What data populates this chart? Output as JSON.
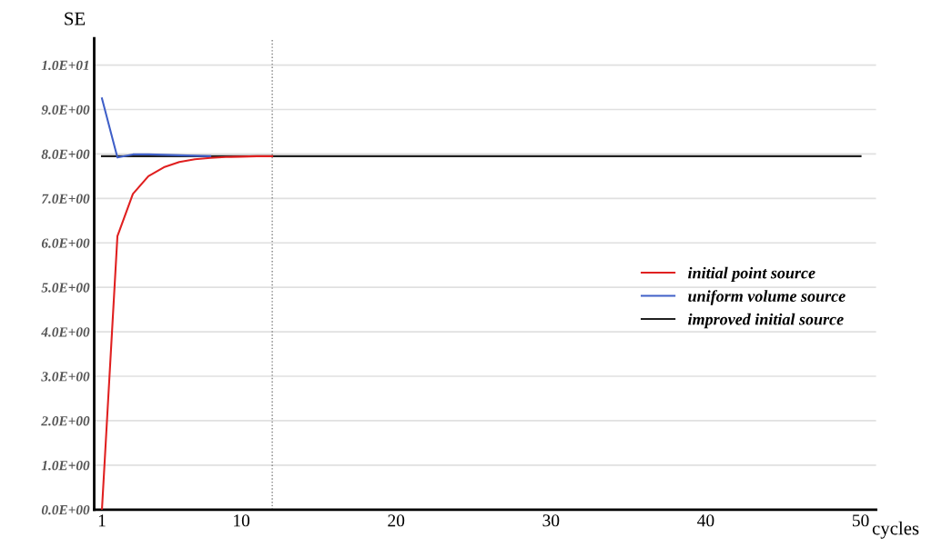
{
  "chart_data": {
    "type": "line",
    "xlabel": "cycles",
    "ylabel": "SE",
    "series": [
      {
        "name": "initial point source",
        "color": "#e02020",
        "x": [
          1,
          2,
          3,
          4,
          5,
          6,
          7,
          8,
          9,
          10,
          11,
          12
        ],
        "values": [
          0.0,
          6.15,
          7.1,
          7.5,
          7.7,
          7.82,
          7.88,
          7.91,
          7.93,
          7.94,
          7.95,
          7.95
        ]
      },
      {
        "name": "uniform volume source",
        "color": "#4060c8",
        "x": [
          1,
          2,
          3,
          4,
          5,
          6,
          7,
          8
        ],
        "values": [
          9.25,
          7.92,
          7.99,
          7.99,
          7.98,
          7.97,
          7.96,
          7.95
        ]
      },
      {
        "name": "improved initial source",
        "color": "#202020",
        "x": [
          1,
          50
        ],
        "values": [
          7.95,
          7.95
        ]
      }
    ],
    "xlim": [
      0.5,
      51
    ],
    "xticks": [
      1,
      10,
      20,
      30,
      40,
      50
    ],
    "ylim": [
      0,
      10.6
    ],
    "yticks": [
      {
        "value": 0,
        "label": "0.0E+00"
      },
      {
        "value": 1,
        "label": "1.0E+00"
      },
      {
        "value": 2,
        "label": "2.0E+00"
      },
      {
        "value": 3,
        "label": "3.0E+00"
      },
      {
        "value": 4,
        "label": "4.0E+00"
      },
      {
        "value": 5,
        "label": "5.0E+00"
      },
      {
        "value": 6,
        "label": "6.0E+00"
      },
      {
        "value": 7,
        "label": "7.0E+00"
      },
      {
        "value": 8,
        "label": "8.0E+00"
      },
      {
        "value": 9,
        "label": "9.0E+00"
      },
      {
        "value": 10,
        "label": "1.0E+01"
      }
    ],
    "ref_lines": [
      {
        "axis": "x",
        "value": 12,
        "color": "#808080",
        "line_style": "dotted"
      }
    ],
    "grid": "y",
    "legend": "center right",
    "marker": "none",
    "line_style": "solid"
  }
}
